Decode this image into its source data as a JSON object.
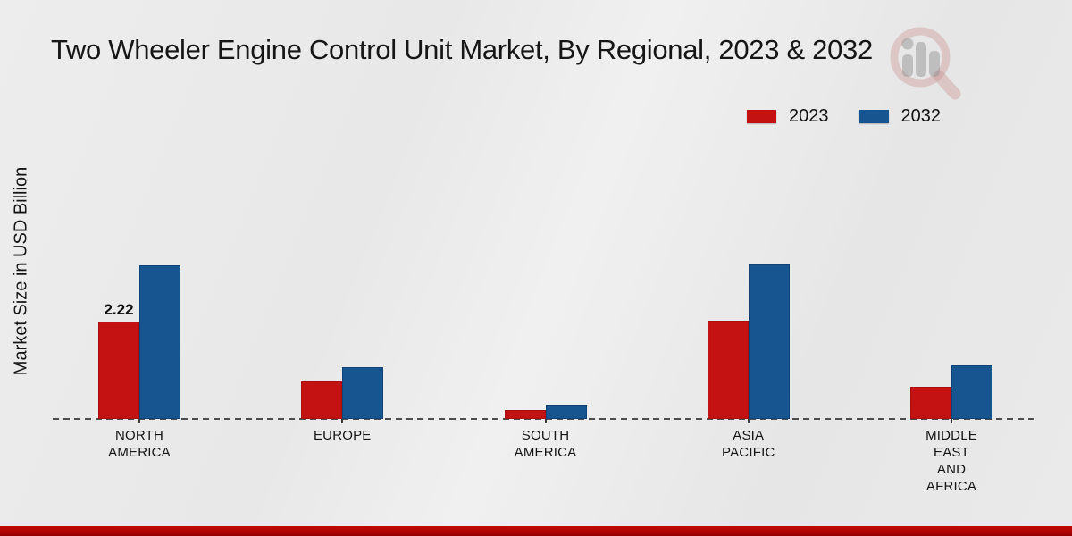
{
  "title": "Two Wheeler Engine Control Unit Market, By Regional, 2023 & 2032",
  "y_axis_label": "Market Size in USD Billion",
  "legend": {
    "items": [
      {
        "label": "2023",
        "color": "#c41212"
      },
      {
        "label": "2032",
        "color": "#175590"
      }
    ]
  },
  "chart_data": {
    "type": "bar",
    "title": "Two Wheeler Engine Control Unit Market, By Regional, 2023 & 2032",
    "ylabel": "Market Size in USD Billion",
    "categories": [
      "NORTH AMERICA",
      "EUROPE",
      "SOUTH AMERICA",
      "ASIA PACIFIC",
      "MIDDLE EAST AND AFRICA"
    ],
    "series": [
      {
        "name": "2023",
        "color": "#c41212",
        "values": [
          2.22,
          0.86,
          0.2,
          2.25,
          0.74
        ]
      },
      {
        "name": "2032",
        "color": "#175590",
        "values": [
          3.52,
          1.19,
          0.32,
          3.54,
          1.22
        ]
      }
    ],
    "data_labels": [
      {
        "series_index": 0,
        "category_index": 0,
        "text": "2.22"
      }
    ],
    "ylim": [
      0,
      4
    ],
    "grid": false,
    "legend_position": "top-right",
    "baseline_style": "dashed"
  }
}
